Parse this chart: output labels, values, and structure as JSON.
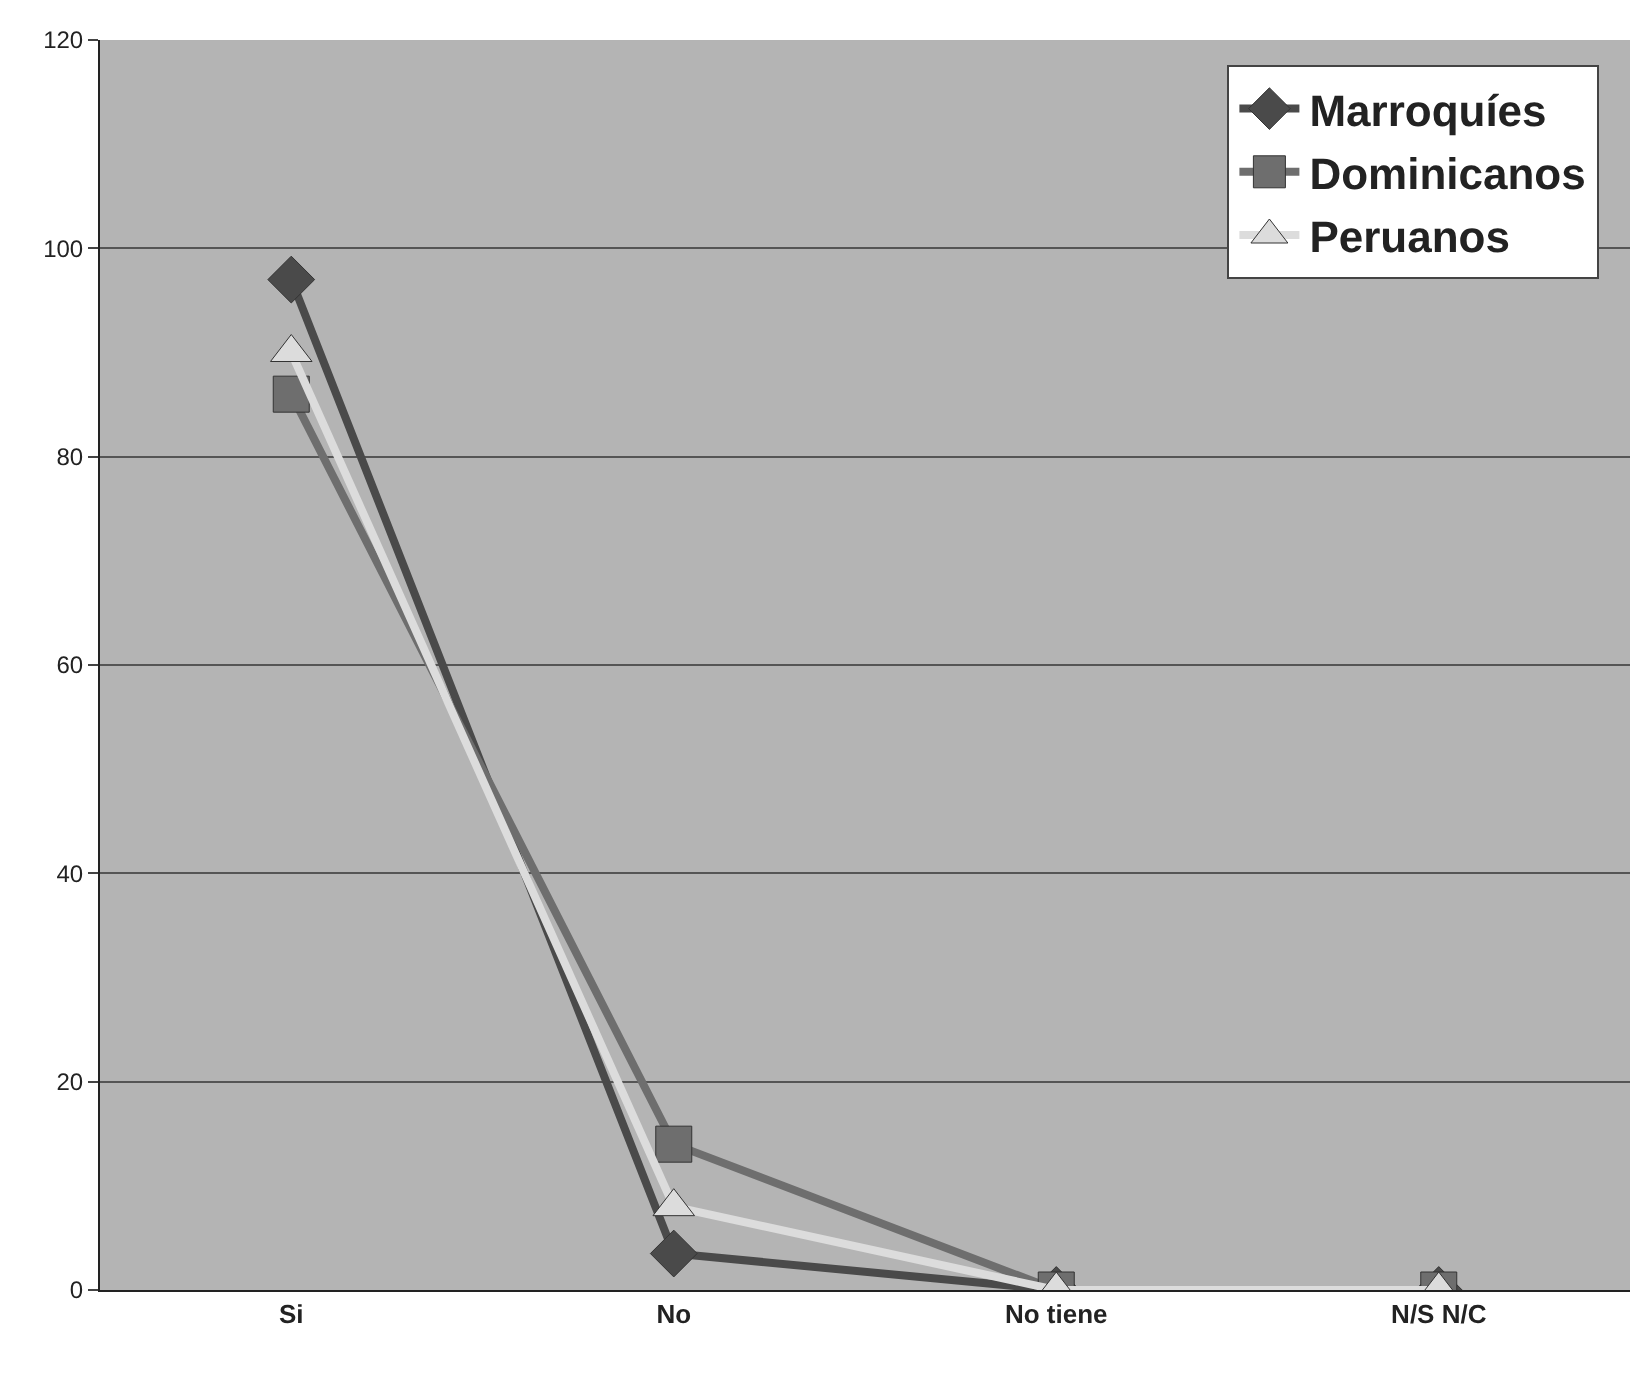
{
  "chart_data": {
    "type": "line",
    "categories": [
      "Si",
      "No",
      "No tiene",
      "N/S N/C"
    ],
    "series": [
      {
        "name": "Marroquíes",
        "color": "#4a4a4a",
        "marker": "diamond",
        "values": [
          97,
          3.5,
          0,
          0
        ]
      },
      {
        "name": "Dominicanos",
        "color": "#6e6e6e",
        "marker": "square",
        "values": [
          86,
          14,
          0,
          0
        ]
      },
      {
        "name": "Peruanos",
        "color": "#dcdcdc",
        "marker": "triangle",
        "values": [
          90,
          8,
          0,
          0
        ]
      }
    ],
    "ylim": [
      0,
      120
    ],
    "yticks": [
      0,
      20,
      40,
      60,
      80,
      100,
      120
    ],
    "grid": "y",
    "legend": "top right"
  }
}
